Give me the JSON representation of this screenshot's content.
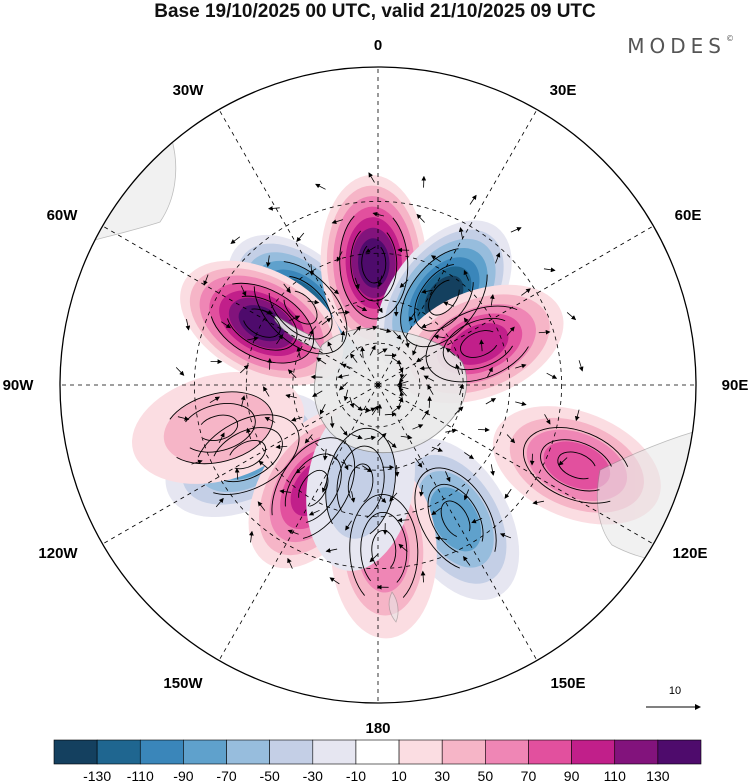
{
  "title": "Base 19/10/2025 00 UTC, valid 21/10/2025 09 UTC",
  "brand": "MODES",
  "brand_mark": "©",
  "map": {
    "projection": "south-polar-stereographic",
    "longitude_labels": [
      "0",
      "30E",
      "60E",
      "90E",
      "120E",
      "150E",
      "180",
      "150W",
      "120W",
      "90W",
      "60W",
      "30W"
    ],
    "vector_reference": "10"
  },
  "colorbar": {
    "ticks": [
      "-130",
      "-110",
      "-90",
      "-70",
      "-50",
      "-30",
      "-10",
      "10",
      "30",
      "50",
      "70",
      "90",
      "110",
      "130"
    ],
    "colors": [
      "#14405f",
      "#1f6690",
      "#3a86ba",
      "#5fa1cc",
      "#97bddd",
      "#c4cfe6",
      "#e6e6f1",
      "#ffffff",
      "#fbdde2",
      "#f6b5c7",
      "#ef86b5",
      "#e2509e",
      "#c11f8a",
      "#82137c",
      "#4e0b6c"
    ]
  },
  "anomaly_centers": [
    {
      "lon": -45,
      "lat": -52,
      "value": -130
    },
    {
      "lon": -2,
      "lat": -48,
      "value": 130
    },
    {
      "lon": 37,
      "lat": -52,
      "value": -130
    },
    {
      "lon": 68,
      "lat": -52,
      "value": 90
    },
    {
      "lon": -62,
      "lat": -45,
      "value": 130
    },
    {
      "lon": -118,
      "lat": -40,
      "value": -70
    },
    {
      "lon": -148,
      "lat": -48,
      "value": 90
    },
    {
      "lon": -105,
      "lat": -35,
      "value": 30
    },
    {
      "lon": 150,
      "lat": -38,
      "value": -70
    },
    {
      "lon": 112,
      "lat": -22,
      "value": 70
    },
    {
      "lon": 178,
      "lat": -35,
      "value": 50
    },
    {
      "lon": -170,
      "lat": -55,
      "value": -30
    }
  ]
}
